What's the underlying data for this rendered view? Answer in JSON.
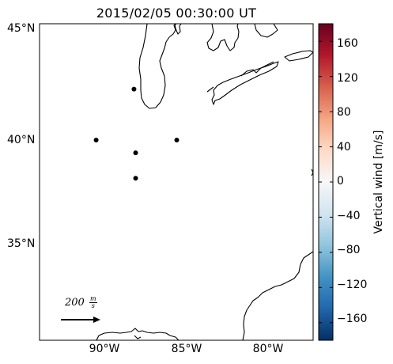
{
  "title": "2015/02/05 00:30:00 UT",
  "map": {
    "lat_labels": [
      "45°N",
      "40°N",
      "35°N"
    ],
    "lon_labels": [
      "90°W",
      "85°W",
      "80°W"
    ],
    "stations": [
      {
        "lon": -88.2,
        "lat": 42.4
      },
      {
        "lon": -90.5,
        "lat": 40.0
      },
      {
        "lon": -88.1,
        "lat": 39.4
      },
      {
        "lon": -85.6,
        "lat": 40.0
      },
      {
        "lon": -88.1,
        "lat": 38.2
      }
    ]
  },
  "colorbar": {
    "label": "Vertical wind [m/s]",
    "ticks": [
      "160",
      "120",
      "80",
      "40",
      "0",
      "−40",
      "−80",
      "−120",
      "−160"
    ],
    "tick_values": [
      160,
      120,
      80,
      40,
      0,
      -40,
      -80,
      -120,
      -160
    ],
    "range": [
      -180,
      180
    ],
    "colormap": "RdBu_r",
    "colors": [
      "#053061",
      "#2166ac",
      "#4393c3",
      "#92c5de",
      "#d1e5f0",
      "#f7f7f7",
      "#fddbc7",
      "#f4a582",
      "#d6604d",
      "#b2182b",
      "#67001f"
    ]
  },
  "reference_arrow": {
    "label": "200 m/s",
    "value_text": "200",
    "unit_num": "m",
    "unit_den": "s"
  }
}
